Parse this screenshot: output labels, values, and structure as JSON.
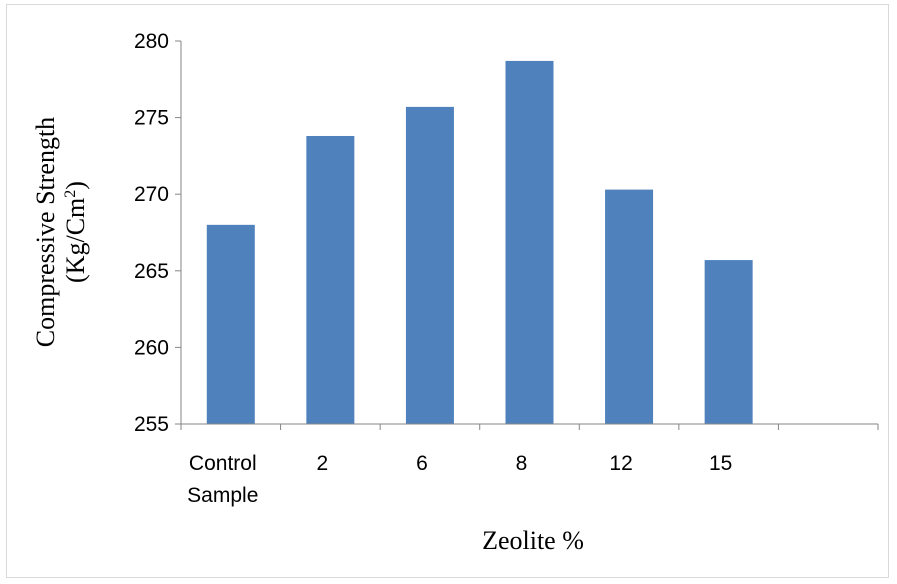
{
  "chart_data": {
    "type": "bar",
    "title": "",
    "xlabel": "Zeolite %",
    "ylabel_line1": "Compressive Strength",
    "ylabel_line2_base": "(Kg/Cm",
    "ylabel_line2_sup": "2",
    "ylabel_line2_end": ")",
    "categories": [
      [
        "Control",
        "Sample"
      ],
      [
        "2"
      ],
      [
        "6"
      ],
      [
        "8"
      ],
      [
        "12"
      ],
      [
        "15"
      ]
    ],
    "values": [
      268.0,
      273.8,
      275.7,
      278.7,
      270.3,
      265.7
    ],
    "ylim": [
      255,
      280
    ],
    "yticks": [
      "255",
      "260",
      "265",
      "270",
      "275",
      "280"
    ],
    "grid": false,
    "legend": "none",
    "bar_color": "#4f81bd",
    "axis_color": "#868686"
  }
}
